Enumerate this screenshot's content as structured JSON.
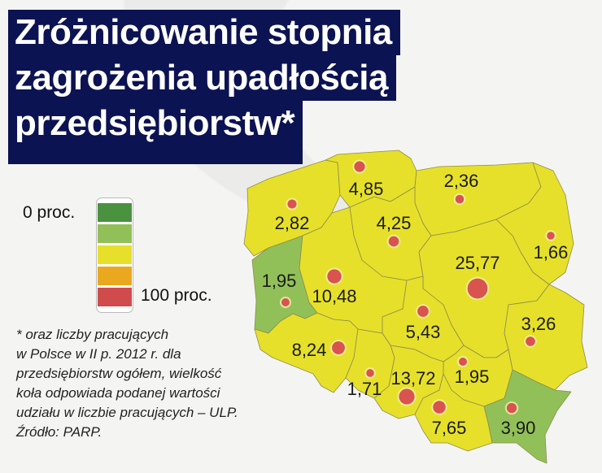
{
  "title": {
    "lines": [
      "Zróżnicowanie stopnia",
      "zagrożenia upadłością",
      "przedsiębiorstw*"
    ],
    "background": "#0c1352"
  },
  "legend": {
    "min_label": "0 proc.",
    "max_label": "100 proc.",
    "colors": [
      "#4a9140",
      "#91c058",
      "#e6e02a",
      "#eaa81f",
      "#d04b4b"
    ]
  },
  "footnote": [
    "* oraz liczby pracujących",
    "w Polsce w II p. 2012 r. dla",
    "przedsiębiorstw ogółem, wielkość",
    "koła odpowiada podanej wartości",
    "udziału w liczbie pracujących – ULP.",
    "Źródło: PARP."
  ],
  "map": {
    "bubble_color": "#d9534f",
    "regions": [
      {
        "value": "2,82",
        "num": 2.82,
        "color": "#e6e02a"
      },
      {
        "value": "1,95",
        "num": 1.95,
        "color": "#91c058"
      },
      {
        "value": "10,48",
        "num": 10.48,
        "color": "#e6e02a"
      },
      {
        "value": "4,85",
        "num": 4.85,
        "color": "#e6e02a"
      },
      {
        "value": "2,36",
        "num": 2.36,
        "color": "#e6e02a"
      },
      {
        "value": "1,66",
        "num": 1.66,
        "color": "#e6e02a"
      },
      {
        "value": "4,25",
        "num": 4.25,
        "color": "#e6e02a"
      },
      {
        "value": "25,77",
        "num": 25.77,
        "color": "#e6e02a"
      },
      {
        "value": "3,26",
        "num": 3.26,
        "color": "#e6e02a"
      },
      {
        "value": "5,43",
        "num": 5.43,
        "color": "#e6e02a"
      },
      {
        "value": "1,95",
        "num": 1.95,
        "color": "#e6e02a"
      },
      {
        "value": "8,24",
        "num": 8.24,
        "color": "#e6e02a"
      },
      {
        "value": "1,71",
        "num": 1.71,
        "color": "#e6e02a"
      },
      {
        "value": "13,72",
        "num": 13.72,
        "color": "#e6e02a"
      },
      {
        "value": "7,65",
        "num": 7.65,
        "color": "#e6e02a"
      },
      {
        "value": "3,90",
        "num": 3.9,
        "color": "#91c058"
      }
    ]
  }
}
